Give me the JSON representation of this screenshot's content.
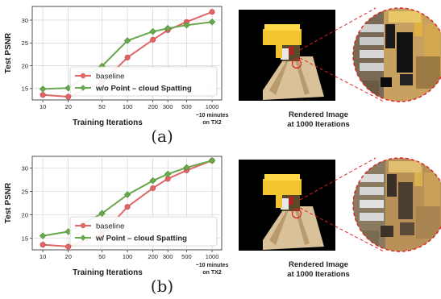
{
  "panels": [
    {
      "label": "(a)",
      "caption_line1": "Rendered Image",
      "caption_line2": "at 1000 Iterations"
    },
    {
      "label": "(b)",
      "caption_line1": "Rendered Image",
      "caption_line2": "at 1000 Iterations"
    }
  ],
  "chart_data": [
    {
      "type": "line",
      "title": "",
      "xlabel": "Training Iterations",
      "ylabel": "Test PSNR",
      "xscale": "log",
      "x": [
        10,
        20,
        50,
        100,
        200,
        300,
        500,
        1000
      ],
      "x_tick_labels": [
        "10",
        "20",
        "50",
        "100",
        "200",
        "300",
        "500",
        "1000"
      ],
      "x_annotation": [
        "~10 minutes",
        "on TX2"
      ],
      "ylim": [
        12.5,
        33
      ],
      "yticks": [
        15,
        20,
        25,
        30
      ],
      "grid": true,
      "legend_position": "lower-right",
      "series": [
        {
          "name": "baseline",
          "color": "#e06666",
          "marker": "circle",
          "values": [
            13.6,
            13.2,
            16.3,
            21.8,
            25.7,
            27.8,
            29.6,
            31.8
          ]
        },
        {
          "name": "w/o Point – cloud Spatting",
          "color": "#6aa84f",
          "marker": "diamond",
          "values": [
            14.9,
            15.1,
            19.9,
            25.5,
            27.5,
            28.2,
            28.9,
            29.6
          ]
        }
      ]
    },
    {
      "type": "line",
      "title": "",
      "xlabel": "Training Iterations",
      "ylabel": "Test PSNR",
      "xscale": "log",
      "x": [
        10,
        20,
        50,
        100,
        200,
        300,
        500,
        1000
      ],
      "x_tick_labels": [
        "10",
        "20",
        "50",
        "100",
        "200",
        "300",
        "500",
        "1000"
      ],
      "x_annotation": [
        "~10 minutes",
        "on TX2"
      ],
      "ylim": [
        12.5,
        32.5
      ],
      "yticks": [
        15,
        20,
        25,
        30
      ],
      "grid": true,
      "legend_position": "lower-right",
      "series": [
        {
          "name": "baseline",
          "color": "#e06666",
          "marker": "circle",
          "values": [
            13.6,
            13.2,
            15.8,
            21.7,
            25.7,
            27.7,
            29.5,
            31.6
          ]
        },
        {
          "name": "w/ Point – cloud Spatting",
          "color": "#6aa84f",
          "marker": "diamond",
          "values": [
            15.5,
            16.4,
            20.3,
            24.3,
            27.3,
            28.7,
            30.1,
            31.6
          ]
        }
      ]
    }
  ]
}
